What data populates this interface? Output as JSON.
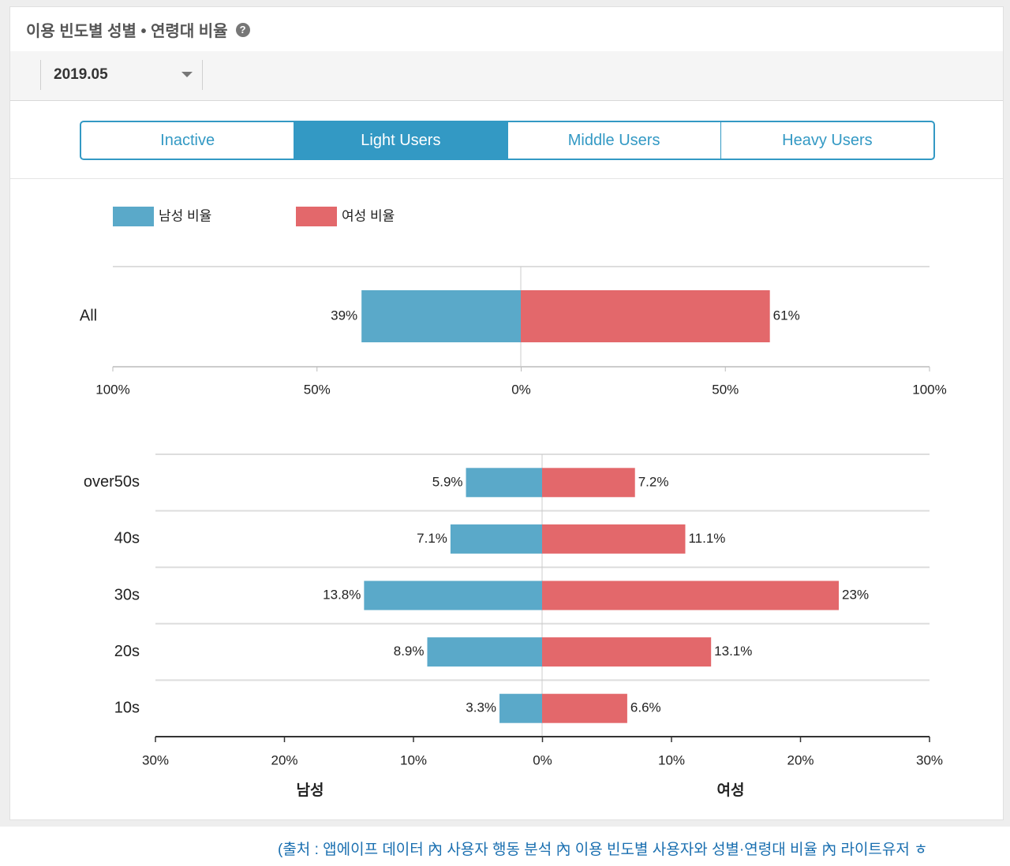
{
  "card": {
    "title": "이용 빈도별 성별 • 연령대 비율",
    "help_icon": "question-circle-icon"
  },
  "filter": {
    "month_value": "2019.05",
    "caret_icon": "caret-down-icon"
  },
  "tabs": [
    {
      "label": "Inactive",
      "active": false
    },
    {
      "label": "Light Users",
      "active": true
    },
    {
      "label": "Middle Users",
      "active": false
    },
    {
      "label": "Heavy Users",
      "active": false
    }
  ],
  "colors": {
    "male": "#5aa9c9",
    "female": "#e3686b",
    "accent": "#3399c4"
  },
  "chart_data": [
    {
      "type": "bar",
      "orientation": "horizontal-diverging",
      "legend": [
        "남성 비율",
        "여성 비율"
      ],
      "legend_position": "top-left",
      "categories": [
        "All"
      ],
      "series": [
        {
          "name": "남성 비율",
          "values": [
            39
          ],
          "labels": [
            "39%"
          ]
        },
        {
          "name": "여성 비율",
          "values": [
            61
          ],
          "labels": [
            "61%"
          ]
        }
      ],
      "xlim": [
        -100,
        100
      ],
      "x_ticks": [
        "100%",
        "50%",
        "0%",
        "50%",
        "100%"
      ]
    },
    {
      "type": "bar",
      "orientation": "horizontal-diverging",
      "categories": [
        "over50s",
        "40s",
        "30s",
        "20s",
        "10s"
      ],
      "series": [
        {
          "name": "남성",
          "values": [
            5.9,
            7.1,
            13.8,
            8.9,
            3.3
          ],
          "labels": [
            "5.9%",
            "7.1%",
            "13.8%",
            "8.9%",
            "3.3%"
          ]
        },
        {
          "name": "여성",
          "values": [
            7.2,
            11.1,
            23,
            13.1,
            6.6
          ],
          "labels": [
            "7.2%",
            "11.1%",
            "23%",
            "13.1%",
            "6.6%"
          ]
        }
      ],
      "xlim": [
        -30,
        30
      ],
      "x_ticks": [
        "30%",
        "20%",
        "10%",
        "0%",
        "10%",
        "20%",
        "30%"
      ],
      "x_side_labels": [
        "남성",
        "여성"
      ]
    }
  ],
  "source_note": "(출처 : 앱에이프 데이터 內 사용자 행동 분석 內  이용 빈도별 사용자와 성별·연령대 비율 內  라이트유저 ㅎ"
}
